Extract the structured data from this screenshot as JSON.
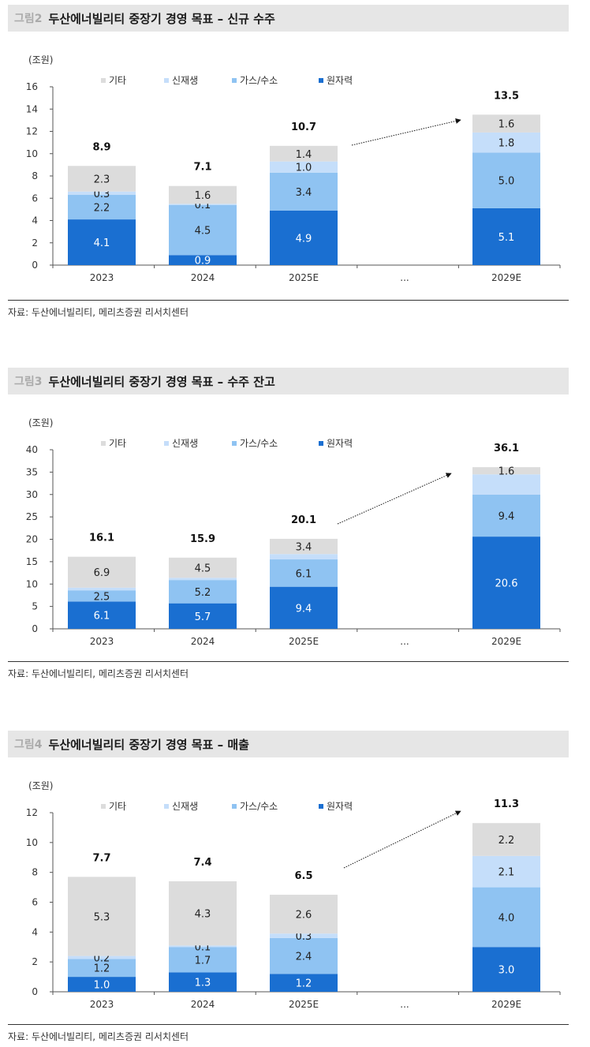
{
  "colors": {
    "기타": "#dcdcdc",
    "신재생": "#c5defa",
    "가스/수소": "#8fc3f2",
    "원자력": "#1a6fd1"
  },
  "figures": [
    {
      "label": "그림2",
      "title": "두산에너빌리티 중장기 경영 목표 – 신규 수주",
      "source": "자료: 두산에너빌리티, 메리츠증권 리서치센터",
      "chart_data": {
        "type": "bar",
        "stacked": true,
        "unit_label": "(조원)",
        "categories": [
          "2023",
          "2024",
          "2025E",
          "...",
          "2029E"
        ],
        "ylim": [
          0,
          16
        ],
        "yticks": [
          "0",
          "2",
          "4",
          "6",
          "8",
          "10",
          "12",
          "14",
          "16"
        ],
        "legend": [
          "기타",
          "신재생",
          "가스/수소",
          "원자력"
        ],
        "series": [
          {
            "name": "원자력",
            "values": [
              4.1,
              0.9,
              4.9,
              null,
              5.1
            ],
            "labels": [
              "4.1",
              "0.9",
              "4.9",
              "",
              "5.1"
            ]
          },
          {
            "name": "가스/수소",
            "values": [
              2.2,
              4.5,
              3.4,
              null,
              5.0
            ],
            "labels": [
              "2.2",
              "4.5",
              "3.4",
              "",
              "5.0"
            ]
          },
          {
            "name": "신재생",
            "values": [
              0.3,
              0.1,
              1.0,
              null,
              1.8
            ],
            "labels": [
              "0.3",
              "0.1",
              "1.0",
              "",
              "1.8"
            ]
          },
          {
            "name": "기타",
            "values": [
              2.3,
              1.6,
              1.4,
              null,
              1.6
            ],
            "labels": [
              "2.3",
              "1.6",
              "1.4",
              "",
              "1.6"
            ]
          }
        ],
        "totals": [
          "8.9",
          "7.1",
          "10.7",
          "",
          "13.5"
        ]
      }
    },
    {
      "label": "그림3",
      "title": "두산에너빌리티 중장기 경영 목표 – 수주 잔고",
      "source": "자료: 두산에너빌리티, 메리츠증권 리서치센터",
      "chart_data": {
        "type": "bar",
        "stacked": true,
        "unit_label": "(조원)",
        "categories": [
          "2023",
          "2024",
          "2025E",
          "...",
          "2029E"
        ],
        "ylim": [
          0,
          40
        ],
        "yticks": [
          "0",
          "5",
          "10",
          "15",
          "20",
          "25",
          "30",
          "35",
          "40"
        ],
        "legend": [
          "기타",
          "신재생",
          "가스/수소",
          "원자력"
        ],
        "series": [
          {
            "name": "원자력",
            "values": [
              6.1,
              5.7,
              9.4,
              null,
              20.6
            ],
            "labels": [
              "6.1",
              "5.7",
              "9.4",
              "",
              "20.6"
            ]
          },
          {
            "name": "가스/수소",
            "values": [
              2.5,
              5.2,
              6.1,
              null,
              9.4
            ],
            "labels": [
              "2.5",
              "5.2",
              "6.1",
              "",
              "9.4"
            ]
          },
          {
            "name": "신재생",
            "values": [
              0.6,
              0.5,
              1.2,
              null,
              4.5
            ],
            "labels": [
              "",
              "",
              "",
              "",
              ""
            ]
          },
          {
            "name": "기타",
            "values": [
              6.9,
              4.5,
              3.4,
              null,
              1.6
            ],
            "labels": [
              "6.9",
              "4.5",
              "3.4",
              "",
              "1.6"
            ]
          }
        ],
        "totals": [
          "16.1",
          "15.9",
          "20.1",
          "",
          "36.1"
        ]
      }
    },
    {
      "label": "그림4",
      "title": "두산에너빌리티 중장기 경영 목표 – 매출",
      "source": "자료: 두산에너빌리티, 메리츠증권 리서치센터",
      "chart_data": {
        "type": "bar",
        "stacked": true,
        "unit_label": "(조원)",
        "categories": [
          "2023",
          "2024",
          "2025E",
          "...",
          "2029E"
        ],
        "ylim": [
          0,
          12
        ],
        "yticks": [
          "0",
          "2",
          "4",
          "6",
          "8",
          "10",
          "12"
        ],
        "legend": [
          "기타",
          "신재생",
          "가스/수소",
          "원자력"
        ],
        "series": [
          {
            "name": "원자력",
            "values": [
              1.0,
              1.3,
              1.2,
              null,
              3.0
            ],
            "labels": [
              "1.0",
              "1.3",
              "1.2",
              "",
              "3.0"
            ]
          },
          {
            "name": "가스/수소",
            "values": [
              1.2,
              1.7,
              2.4,
              null,
              4.0
            ],
            "labels": [
              "1.2",
              "1.7",
              "2.4",
              "",
              "4.0"
            ]
          },
          {
            "name": "신재생",
            "values": [
              0.2,
              0.1,
              0.3,
              null,
              2.1
            ],
            "labels": [
              "0.2",
              "0.1",
              "0.3",
              "",
              "2.1"
            ]
          },
          {
            "name": "기타",
            "values": [
              5.3,
              4.3,
              2.6,
              null,
              2.2
            ],
            "labels": [
              "5.3",
              "4.3",
              "2.6",
              "",
              "2.2"
            ]
          }
        ],
        "totals": [
          "7.7",
          "7.4",
          "6.5",
          "",
          "11.3"
        ]
      }
    }
  ]
}
